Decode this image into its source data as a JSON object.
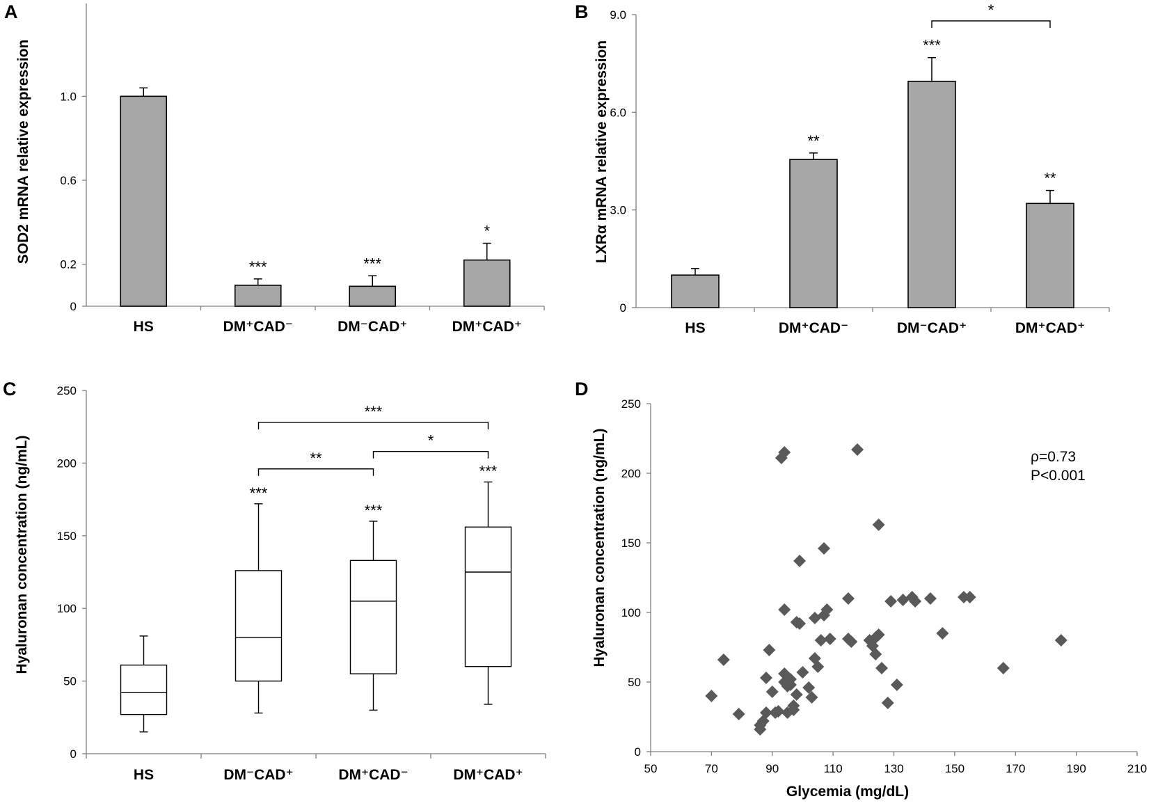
{
  "colors": {
    "bar_fill": "#a6a6a6",
    "point_fill": "#595959",
    "axis": "#7f7f7f"
  },
  "panel_labels": [
    "A",
    "B",
    "C",
    "D"
  ],
  "chart_data": [
    {
      "id": "A",
      "type": "bar",
      "ylabel": "SOD2 mRNA relative expression",
      "categories": [
        "HS",
        "DM⁺CAD⁻",
        "DM⁻CAD⁺",
        "DM⁺CAD⁺"
      ],
      "values": [
        1.0,
        0.1,
        0.095,
        0.22
      ],
      "errors": [
        0.04,
        0.03,
        0.05,
        0.08
      ],
      "significance": [
        "",
        "***",
        "***",
        "*"
      ],
      "yticks": [
        {
          "value": 0,
          "label": "0"
        },
        {
          "value": 0.2,
          "label": "0.2"
        },
        {
          "value": 0.6,
          "label": "0.6"
        },
        {
          "value": 1.0,
          "label": "1.0"
        }
      ],
      "ylim": [
        0,
        1.2
      ],
      "brackets": []
    },
    {
      "id": "B",
      "type": "bar",
      "ylabel": "LXRα mRNA relative expression",
      "categories": [
        "HS",
        "DM⁺CAD⁻",
        "DM⁻CAD⁺",
        "DM⁺CAD⁺"
      ],
      "values": [
        1.0,
        4.55,
        6.95,
        3.2
      ],
      "errors": [
        0.2,
        0.2,
        0.73,
        0.4
      ],
      "significance": [
        "",
        "**",
        "***",
        "**"
      ],
      "yticks": [
        {
          "value": 0,
          "label": "0"
        },
        {
          "value": 3,
          "label": "3.0"
        },
        {
          "value": 6,
          "label": "6.0"
        },
        {
          "value": 9,
          "label": "9.0"
        }
      ],
      "ylim": [
        0,
        9
      ],
      "brackets": [
        {
          "from": 2,
          "to": 3,
          "label": "*"
        }
      ]
    },
    {
      "id": "C",
      "type": "box",
      "ylabel": "Hyaluronan concentration (ng/mL)",
      "categories": [
        "HS",
        "DM⁻CAD⁺",
        "DM⁺CAD⁻",
        "DM⁺CAD⁺"
      ],
      "boxes": [
        {
          "min": 15,
          "q1": 27,
          "median": 42,
          "q3": 61,
          "max": 81
        },
        {
          "min": 28,
          "q1": 50,
          "median": 80,
          "q3": 126,
          "max": 172
        },
        {
          "min": 30,
          "q1": 55,
          "median": 105,
          "q3": 133,
          "max": 160
        },
        {
          "min": 34,
          "q1": 60,
          "median": 125,
          "q3": 156,
          "max": 187
        }
      ],
      "significance": [
        "",
        "***",
        "***",
        "***"
      ],
      "yticks": [
        {
          "value": 0,
          "label": "0"
        },
        {
          "value": 50,
          "label": "50"
        },
        {
          "value": 100,
          "label": "100"
        },
        {
          "value": 150,
          "label": "150"
        },
        {
          "value": 200,
          "label": "200"
        },
        {
          "value": 250,
          "label": "250"
        }
      ],
      "ylim": [
        0,
        250
      ],
      "brackets": [
        {
          "from": 1,
          "to": 2,
          "label": "**"
        },
        {
          "from": 2,
          "to": 3,
          "label": "*"
        },
        {
          "from": 1,
          "to": 3,
          "label": "***"
        }
      ]
    },
    {
      "id": "D",
      "type": "scatter",
      "xlabel": "Glycemia (mg/dL)",
      "ylabel": "Hyaluronan concentration (ng/mL)",
      "xlim": [
        50,
        210
      ],
      "ylim": [
        0,
        250
      ],
      "xticks": [
        50,
        70,
        90,
        110,
        130,
        150,
        170,
        190,
        210
      ],
      "yticks": [
        0,
        50,
        100,
        150,
        200,
        250
      ],
      "stats": [
        "ρ=0.73",
        "P<0.001"
      ],
      "points": [
        [
          70,
          40
        ],
        [
          74,
          66
        ],
        [
          79,
          27
        ],
        [
          86,
          16
        ],
        [
          86,
          19
        ],
        [
          87,
          22
        ],
        [
          88,
          53
        ],
        [
          88,
          28
        ],
        [
          89,
          73
        ],
        [
          90,
          43
        ],
        [
          91,
          28
        ],
        [
          92,
          29
        ],
        [
          93,
          211
        ],
        [
          94,
          215
        ],
        [
          94,
          102
        ],
        [
          94,
          56
        ],
        [
          94,
          50
        ],
        [
          95,
          47
        ],
        [
          95,
          28
        ],
        [
          96,
          52
        ],
        [
          96,
          48
        ],
        [
          97,
          30
        ],
        [
          97,
          33
        ],
        [
          98,
          41
        ],
        [
          98,
          93
        ],
        [
          99,
          137
        ],
        [
          99,
          92
        ],
        [
          100,
          57
        ],
        [
          102,
          46
        ],
        [
          103,
          39
        ],
        [
          104,
          96
        ],
        [
          104,
          67
        ],
        [
          105,
          61
        ],
        [
          106,
          80
        ],
        [
          107,
          146
        ],
        [
          107,
          98
        ],
        [
          108,
          102
        ],
        [
          109,
          81
        ],
        [
          115,
          81
        ],
        [
          115,
          110
        ],
        [
          116,
          79
        ],
        [
          118,
          217
        ],
        [
          122,
          80
        ],
        [
          123,
          76
        ],
        [
          124,
          82
        ],
        [
          124,
          70
        ],
        [
          125,
          84
        ],
        [
          125,
          163
        ],
        [
          126,
          60
        ],
        [
          128,
          35
        ],
        [
          129,
          108
        ],
        [
          131,
          48
        ],
        [
          133,
          109
        ],
        [
          136,
          111
        ],
        [
          137,
          108
        ],
        [
          142,
          110
        ],
        [
          146,
          85
        ],
        [
          153,
          111
        ],
        [
          155,
          111
        ],
        [
          166,
          60
        ],
        [
          185,
          80
        ]
      ]
    }
  ]
}
